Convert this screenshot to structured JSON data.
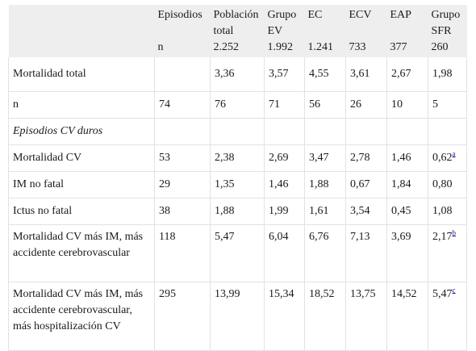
{
  "header": {
    "columns": [
      {
        "label": "",
        "n": ""
      },
      {
        "label": "Episodios",
        "n": "n"
      },
      {
        "label": "Población total",
        "n": "2.252"
      },
      {
        "label": "Grupo EV",
        "n": "1.992"
      },
      {
        "label": "EC",
        "n": "1.241"
      },
      {
        "label": "ECV",
        "n": "733"
      },
      {
        "label": "EAP",
        "n": "377"
      },
      {
        "label": "Grupo SFR",
        "n": "260"
      }
    ]
  },
  "rows": [
    {
      "label": "Mortalidad total",
      "values": [
        "",
        "3,36",
        "3,57",
        "4,55",
        "3,61",
        "2,67",
        "1,98"
      ],
      "note": ""
    },
    {
      "label": "n",
      "values": [
        "74",
        "76",
        "71",
        "56",
        "26",
        "10",
        "5"
      ],
      "note": ""
    },
    {
      "label": "Episodios CV duros",
      "values": [
        "",
        "",
        "",
        "",
        "",
        "",
        ""
      ],
      "note": ""
    },
    {
      "label": "Mortalidad CV",
      "values": [
        "53",
        "2,38",
        "2,69",
        "3,47",
        "2,78",
        "1,46",
        "0,62"
      ],
      "note": "a"
    },
    {
      "label": "IM no fatal",
      "values": [
        "29",
        "1,35",
        "1,46",
        "1,88",
        "0,67",
        "1,84",
        "0,80"
      ],
      "note": ""
    },
    {
      "label": "Ictus no fatal",
      "values": [
        "38",
        "1,88",
        "1,99",
        "1,61",
        "3,54",
        "0,45",
        "1,08"
      ],
      "note": ""
    },
    {
      "label": "Mortalidad CV más IM, más accidente cerebrovascular",
      "values": [
        "118",
        "5,47",
        "6,04",
        "6,76",
        "7,13",
        "3,69",
        "2,17"
      ],
      "note": "b"
    },
    {
      "label": "Mortalidad CV más IM, más accidente cerebrovascular, más hospitalización CV",
      "values": [
        "295",
        "13,99",
        "15,34",
        "18,52",
        "13,75",
        "14,52",
        "5,47"
      ],
      "note": "c"
    }
  ]
}
